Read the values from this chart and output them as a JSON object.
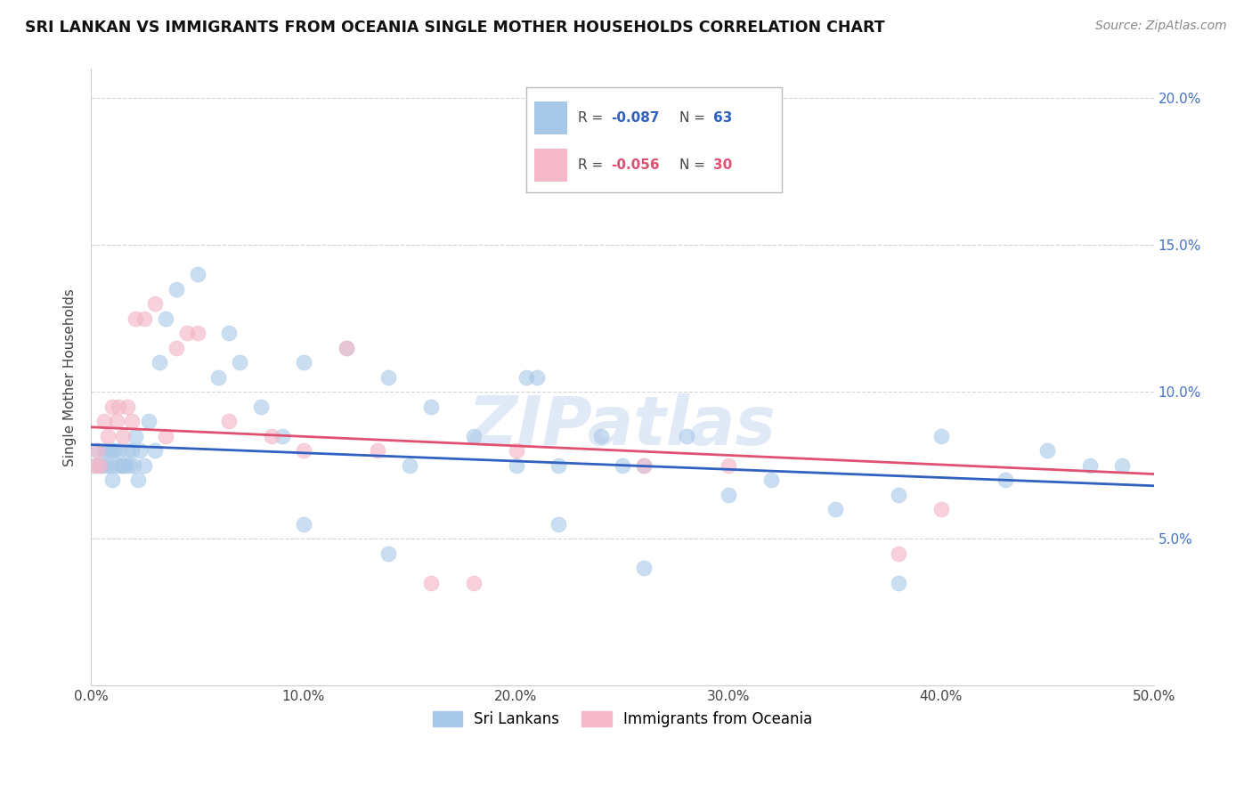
{
  "title": "SRI LANKAN VS IMMIGRANTS FROM OCEANIA SINGLE MOTHER HOUSEHOLDS CORRELATION CHART",
  "source": "Source: ZipAtlas.com",
  "ylabel": "Single Mother Households",
  "xlabel_ticks": [
    "0.0%",
    "10.0%",
    "20.0%",
    "30.0%",
    "40.0%",
    "50.0%"
  ],
  "xlabel_vals": [
    0.0,
    10.0,
    20.0,
    30.0,
    40.0,
    50.0
  ],
  "ylabel_ticks": [
    "5.0%",
    "10.0%",
    "15.0%",
    "20.0%"
  ],
  "ylabel_vals": [
    5.0,
    10.0,
    15.0,
    20.0
  ],
  "xlim": [
    0,
    50
  ],
  "ylim": [
    0,
    21
  ],
  "blue_R": -0.087,
  "blue_N": 63,
  "pink_R": -0.056,
  "pink_N": 30,
  "legend_label_blue": "Sri Lankans",
  "legend_label_pink": "Immigrants from Oceania",
  "watermark": "ZIPatlas",
  "blue_color": "#a8c8e8",
  "pink_color": "#f4b8c8",
  "blue_line_color": "#3060c0",
  "pink_line_color": "#e05070",
  "background_color": "#ffffff",
  "grid_color": "#d0d0d0",
  "right_axis_color": "#4472c4",
  "blue_x": [
    0.2,
    0.3,
    0.4,
    0.5,
    0.6,
    0.7,
    0.8,
    0.9,
    1.0,
    1.0,
    1.1,
    1.2,
    1.3,
    1.4,
    1.5,
    1.6,
    1.7,
    1.8,
    1.9,
    2.0,
    2.1,
    2.2,
    2.3,
    2.5,
    2.7,
    3.0,
    3.2,
    3.5,
    4.0,
    5.0,
    6.0,
    6.5,
    7.0,
    8.0,
    9.0,
    10.0,
    12.0,
    14.0,
    15.0,
    16.0,
    18.0,
    20.0,
    20.5,
    21.0,
    22.0,
    24.0,
    25.0,
    26.0,
    28.0,
    30.0,
    32.0,
    35.0,
    38.0,
    40.0,
    43.0,
    45.0,
    47.0,
    48.5,
    10.0,
    14.0,
    22.0,
    38.0,
    26.0
  ],
  "blue_y": [
    7.5,
    8.0,
    7.5,
    7.5,
    8.0,
    7.5,
    8.0,
    7.5,
    8.0,
    7.0,
    8.0,
    7.5,
    8.0,
    7.5,
    7.5,
    7.5,
    8.0,
    7.5,
    8.0,
    7.5,
    8.5,
    7.0,
    8.0,
    7.5,
    9.0,
    8.0,
    11.0,
    12.5,
    13.5,
    14.0,
    10.5,
    12.0,
    11.0,
    9.5,
    8.5,
    11.0,
    11.5,
    10.5,
    7.5,
    9.5,
    8.5,
    7.5,
    10.5,
    10.5,
    7.5,
    8.5,
    7.5,
    7.5,
    8.5,
    6.5,
    7.0,
    6.0,
    6.5,
    8.5,
    7.0,
    8.0,
    7.5,
    7.5,
    5.5,
    4.5,
    5.5,
    3.5,
    4.0
  ],
  "pink_x": [
    0.2,
    0.3,
    0.4,
    0.6,
    0.8,
    1.0,
    1.2,
    1.3,
    1.5,
    1.7,
    1.9,
    2.1,
    2.5,
    3.0,
    4.0,
    5.0,
    6.5,
    8.5,
    10.0,
    12.0,
    13.5,
    16.0,
    18.0,
    26.0,
    30.0,
    40.0,
    3.5,
    4.5,
    20.0,
    38.0
  ],
  "pink_y": [
    7.5,
    8.0,
    7.5,
    9.0,
    8.5,
    9.5,
    9.0,
    9.5,
    8.5,
    9.5,
    9.0,
    12.5,
    12.5,
    13.0,
    11.5,
    12.0,
    9.0,
    8.5,
    8.0,
    11.5,
    8.0,
    3.5,
    3.5,
    7.5,
    7.5,
    6.0,
    8.5,
    12.0,
    8.0,
    4.5
  ],
  "blue_trend_x": [
    0,
    50
  ],
  "blue_trend_y": [
    8.2,
    6.8
  ],
  "pink_trend_x": [
    0,
    50
  ],
  "pink_trend_y": [
    8.8,
    7.2
  ]
}
